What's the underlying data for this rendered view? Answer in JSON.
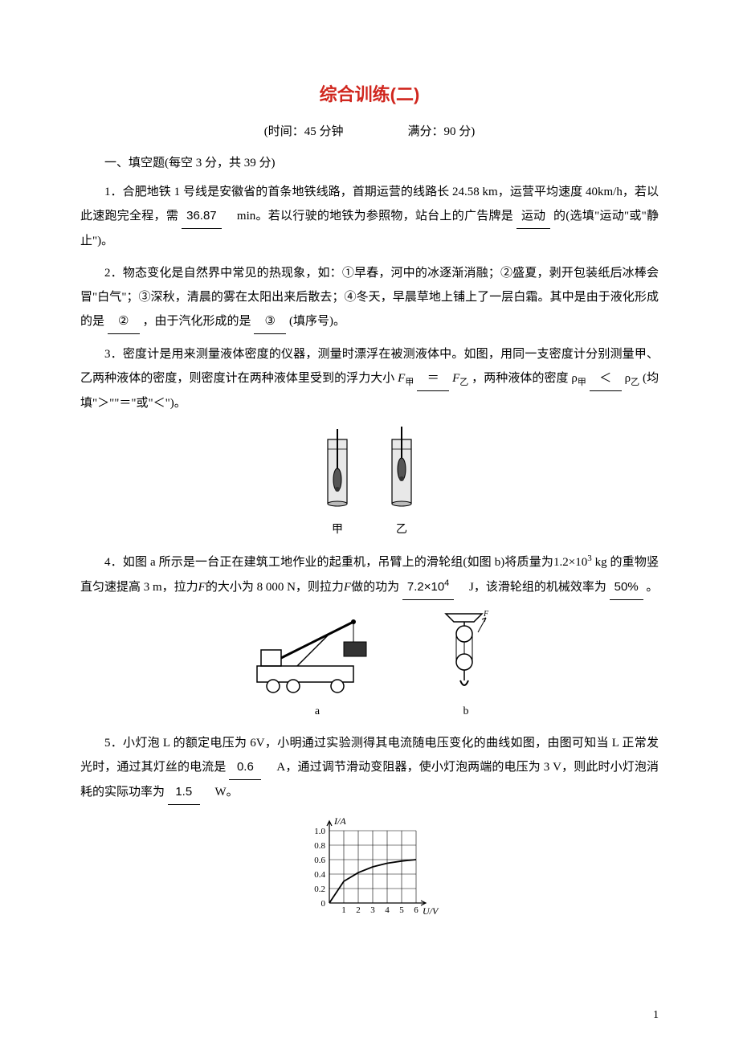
{
  "title": "综合训练(二)",
  "time_info_prefix": "(时间：",
  "time_val": "45 分钟",
  "score_prefix": "满分：",
  "score_val": "90 分)",
  "section1": "一、填空题(每空 3 分，共 39 分)",
  "q1_pre": "1．合肥地铁 1 号线是安徽省的首条地铁线路，首期运营的线路长 24.58 km，运营平均速度 40km/h，若以此速跑完全程，需",
  "q1_blank1": "36.87",
  "q1_mid": "　min。若以行驶的地铁为参照物，站台上的广告牌是",
  "q1_blank2": "运动",
  "q1_post": "的(选填\"运动\"或\"静止\")。",
  "q2_pre": "2．物态变化是自然界中常见的热现象，如：①早春，河中的冰逐渐消融；②盛夏，剥开包装纸后冰棒会冒\"白气\"；③深秋，清晨的雾在太阳出来后散去；④冬天，早晨草地上铺上了一层白霜。其中是由于液化形成的是",
  "q2_blank1": "②",
  "q2_mid": "，由于汽化形成的是",
  "q2_blank2": "③",
  "q2_post": "(填序号)。",
  "q3_pre": "3．密度计是用来测量液体密度的仪器，测量时漂浮在被测液体中。如图，用同一支密度计分别测量甲、乙两种液体的密度，则密度计在两种液体里受到的浮力大小",
  "q3_F1": "F",
  "q3_sub1": "甲",
  "q3_blank1": "＝",
  "q3_F2": "F",
  "q3_sub2": "乙",
  "q3_mid": "，两种液体的密度 ρ",
  "q3_sub3": "甲",
  "q3_blank2": "＜",
  "q3_rho2": "ρ",
  "q3_sub4": "乙",
  "q3_post": "(均填\"＞\"\"＝\"或\"＜\")。",
  "q3_label1": "甲",
  "q3_label2": "乙",
  "q4_pre": "4．如图 a 所示是一台正在建筑工地作业的起重机，吊臂上的滑轮组(如图 b)将质量为1.2×10",
  "q4_sup1": "3",
  "q4_pre2": " kg 的重物竖直匀速提高 3 m，拉力",
  "q4_F": "F",
  "q4_pre3": "的大小为 8 000 N，则拉力",
  "q4_F2": "F",
  "q4_pre4": "做的功为",
  "q4_blank1_pre": "7.2×10",
  "q4_blank1_sup": "4",
  "q4_mid": "　J，该滑轮组的机械效率为",
  "q4_blank2": "50%",
  "q4_post": "。",
  "q4_label_a": "a",
  "q4_label_b": "b",
  "q5_pre": "5．小灯泡 L 的额定电压为 6V，小明通过实验测得其电流随电压变化的曲线如图，由图可知当 L 正常发光时，通过其灯丝的电流是",
  "q5_blank1": "0.6",
  "q5_mid": "　A，通过调节滑动变阻器，使小灯泡两端的电压为 3 V，则此时小灯泡消耗的实际功率为",
  "q5_blank2": "1.5",
  "q5_post": "　W。",
  "chart": {
    "ylabel": "I/A",
    "xlabel": "U/V",
    "yticks": [
      "1.0",
      "0.8",
      "0.6",
      "0.4",
      "0.2",
      "0"
    ],
    "xticks": [
      "1",
      "2",
      "3",
      "4",
      "5",
      "6"
    ],
    "grid_color": "#000000",
    "curve_color": "#000000"
  },
  "page_num": "1",
  "colors": {
    "title": "#d0261e",
    "text": "#000000",
    "bg": "#ffffff"
  }
}
